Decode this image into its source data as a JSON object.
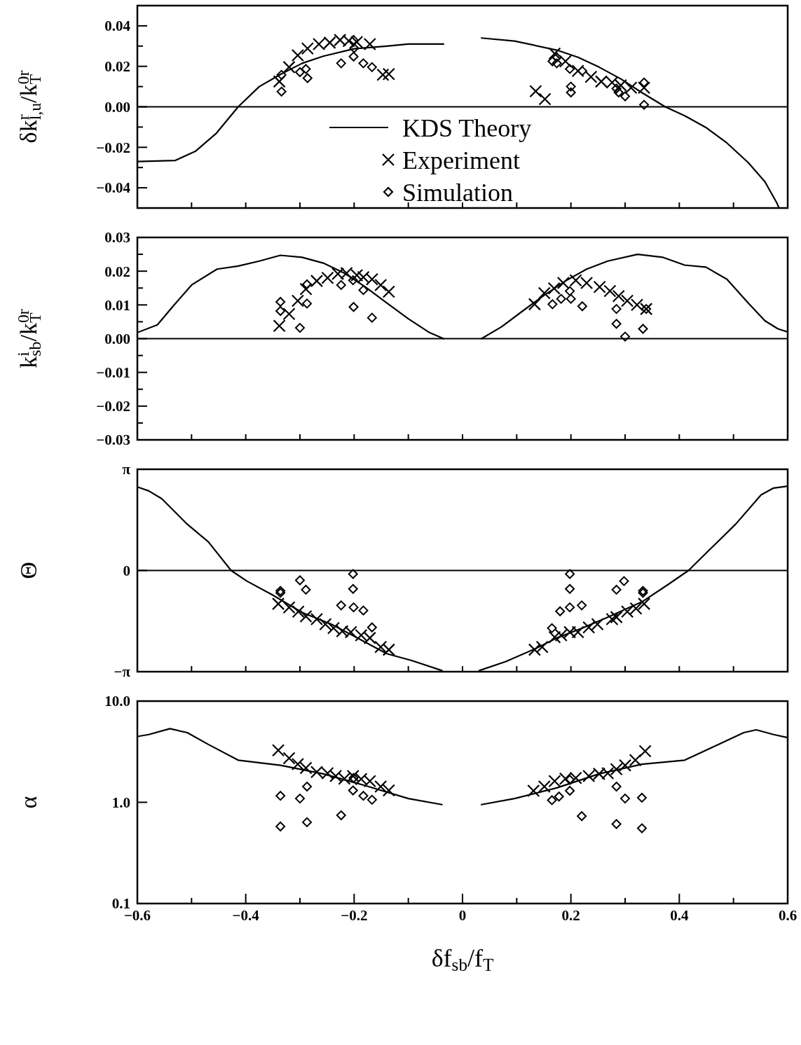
{
  "chart_data": [
    {
      "type": "scatter",
      "ylabel": "δk$^{r}$$_{l,u}$/k$^{0r}$$_{T}$",
      "xlim": [
        -0.6,
        0.6
      ],
      "ylim": [
        -0.05,
        0.05
      ],
      "tick_labels": "y",
      "legend": "bottom",
      "grid": false,
      "xticks": [
        {
          "value": -0.6,
          "label": null
        },
        {
          "value": -0.5,
          "label": null
        },
        {
          "value": -0.4,
          "label": null
        },
        {
          "value": -0.3,
          "label": null
        },
        {
          "value": -0.2,
          "label": null
        },
        {
          "value": -0.1,
          "label": null
        },
        {
          "value": 0,
          "label": null
        },
        {
          "value": 0.1,
          "label": null
        },
        {
          "value": 0.2,
          "label": null
        },
        {
          "value": 0.3,
          "label": null
        },
        {
          "value": 0.4,
          "label": null
        },
        {
          "value": 0.5,
          "label": null
        },
        {
          "value": 0.6,
          "label": null
        }
      ],
      "yticks": [
        {
          "value": -0.04,
          "label": "−0.04"
        },
        {
          "value": -0.03,
          "label": null
        },
        {
          "value": -0.02,
          "label": "−0.02"
        },
        {
          "value": -0.01,
          "label": null
        },
        {
          "value": 0,
          "label": "0.00"
        },
        {
          "value": 0.01,
          "label": null
        },
        {
          "value": 0.02,
          "label": "0.02"
        },
        {
          "value": 0.03,
          "label": null
        },
        {
          "value": 0.04,
          "label": "0.04"
        }
      ],
      "ref_lines": [
        {
          "axis": "y",
          "value": 0
        }
      ],
      "series": [
        {
          "name": "KDS Theory",
          "type": "line",
          "marker": "none",
          "color": "#000000",
          "x": [
            -0.6,
            -0.53,
            -0.493,
            -0.454,
            -0.414,
            -0.375,
            -0.336,
            -0.296,
            -0.257,
            -0.2,
            -0.14,
            -0.1,
            -0.035,
            null,
            0.035,
            0.096,
            0.174,
            0.213,
            0.252,
            0.292,
            0.331,
            0.374,
            0.41,
            0.449,
            0.488,
            0.527,
            0.558,
            0.58,
            0.584
          ],
          "values": [
            -0.027,
            -0.0265,
            -0.022,
            -0.013,
            0,
            0.01,
            0.016,
            0.0215,
            0.025,
            0.0287,
            0.03,
            0.031,
            0.031,
            null,
            0.034,
            0.0325,
            0.028,
            0.0245,
            0.0196,
            0.0138,
            0.007,
            0,
            -0.0044,
            -0.0102,
            -0.0179,
            -0.0275,
            -0.037,
            -0.0475,
            -0.05
          ]
        },
        {
          "name": "Experiment",
          "type": "scatter",
          "marker": "cross",
          "color": "#000000",
          "x": [
            -0.338,
            -0.32,
            -0.304,
            -0.286,
            -0.265,
            -0.245,
            -0.226,
            -0.21,
            -0.195,
            -0.171,
            -0.147,
            -0.136,
            0.135,
            0.152,
            0.17,
            0.19,
            0.213,
            0.237,
            0.256,
            0.276,
            0.292,
            0.311,
            0.335
          ],
          "values": [
            0.0125,
            0.0196,
            0.0254,
            0.0288,
            0.031,
            0.0317,
            0.033,
            0.0325,
            0.032,
            0.031,
            0.0158,
            0.0162,
            0.0077,
            0.0038,
            0.0263,
            0.0225,
            0.0177,
            0.0148,
            0.0125,
            0.012,
            0.0106,
            0.0094,
            0.0094
          ]
        },
        {
          "name": "Simulation",
          "type": "scatter",
          "marker": "diamond",
          "color": "#000000",
          "x": [
            -0.334,
            -0.334,
            -0.3,
            -0.289,
            -0.286,
            -0.224,
            -0.201,
            -0.201,
            -0.2,
            -0.183,
            -0.167,
            0.166,
            0.174,
            0.174,
            0.198,
            0.2,
            0.2,
            0.221,
            0.284,
            0.288,
            0.3,
            0.335,
            0.335
          ],
          "values": [
            0.0075,
            0.0158,
            0.0171,
            0.0187,
            0.0142,
            0.0215,
            0.0248,
            0.033,
            0.029,
            0.0215,
            0.0196,
            0.0225,
            0.0215,
            0.0244,
            0.0187,
            0.01,
            0.0071,
            0.0177,
            0.009,
            0.0071,
            0.0052,
            0.001,
            0.012
          ]
        }
      ]
    },
    {
      "type": "scatter",
      "ylabel": "k$^{i}$$_{sb}$/k$^{0r}$$_{T}$",
      "xlim": [
        -0.6,
        0.6
      ],
      "ylim": [
        -0.03,
        0.03
      ],
      "tick_labels": "y",
      "grid": false,
      "xticks": [
        {
          "value": -0.6,
          "label": null
        },
        {
          "value": -0.5,
          "label": null
        },
        {
          "value": -0.4,
          "label": null
        },
        {
          "value": -0.3,
          "label": null
        },
        {
          "value": -0.2,
          "label": null
        },
        {
          "value": -0.1,
          "label": null
        },
        {
          "value": 0,
          "label": null
        },
        {
          "value": 0.1,
          "label": null
        },
        {
          "value": 0.2,
          "label": null
        },
        {
          "value": 0.3,
          "label": null
        },
        {
          "value": 0.4,
          "label": null
        },
        {
          "value": 0.5,
          "label": null
        },
        {
          "value": 0.6,
          "label": null
        }
      ],
      "yticks": [
        {
          "value": -0.03,
          "label": "−0.03"
        },
        {
          "value": -0.025,
          "label": null
        },
        {
          "value": -0.02,
          "label": "−0.02"
        },
        {
          "value": -0.015,
          "label": null
        },
        {
          "value": -0.01,
          "label": "−0.01"
        },
        {
          "value": -0.005,
          "label": null
        },
        {
          "value": 0,
          "label": "0.00"
        },
        {
          "value": 0.005,
          "label": null
        },
        {
          "value": 0.01,
          "label": "0.01"
        },
        {
          "value": 0.015,
          "label": null
        },
        {
          "value": 0.02,
          "label": "0.02"
        },
        {
          "value": 0.025,
          "label": null
        },
        {
          "value": 0.03,
          "label": "0.03"
        }
      ],
      "ref_lines": [
        {
          "axis": "y",
          "value": 0
        }
      ],
      "series": [
        {
          "type": "line",
          "marker": "none",
          "color": "#000000",
          "x": [
            -0.6,
            -0.563,
            -0.532,
            -0.5,
            -0.453,
            -0.414,
            -0.375,
            -0.336,
            -0.296,
            -0.257,
            -0.218,
            -0.179,
            -0.14,
            -0.1,
            -0.061,
            -0.035,
            null,
            0.035,
            0.072,
            0.111,
            0.151,
            0.19,
            0.229,
            0.268,
            0.323,
            0.37,
            0.41,
            0.449,
            0.488,
            0.527,
            0.558,
            0.582,
            0.6
          ],
          "values": [
            0.0018,
            0.0041,
            0.01,
            0.0159,
            0.0206,
            0.0215,
            0.023,
            0.0247,
            0.0241,
            0.0224,
            0.0194,
            0.0153,
            0.0106,
            0.0059,
            0.0018,
            0,
            null,
            0,
            0.0035,
            0.0082,
            0.0129,
            0.0171,
            0.0206,
            0.023,
            0.025,
            0.0241,
            0.0218,
            0.0212,
            0.0176,
            0.0106,
            0.0053,
            0.0029,
            0.002
          ]
        },
        {
          "type": "scatter",
          "marker": "cross",
          "color": "#000000",
          "x": [
            -0.338,
            -0.32,
            -0.304,
            -0.289,
            -0.269,
            -0.249,
            -0.23,
            -0.214,
            -0.195,
            -0.183,
            -0.167,
            -0.151,
            -0.136,
            0.133,
            0.151,
            0.169,
            0.186,
            0.209,
            0.229,
            0.253,
            0.272,
            0.288,
            0.304,
            0.322,
            0.339
          ],
          "values": [
            0.0038,
            0.0073,
            0.0112,
            0.0147,
            0.0171,
            0.018,
            0.0192,
            0.0194,
            0.0188,
            0.0182,
            0.0176,
            0.0159,
            0.0139,
            0.0102,
            0.0135,
            0.0149,
            0.0165,
            0.0173,
            0.0165,
            0.0153,
            0.0141,
            0.0126,
            0.0112,
            0.01,
            0.0088
          ]
        },
        {
          "type": "scatter",
          "marker": "diamond",
          "color": "#000000",
          "x": [
            -0.336,
            -0.336,
            -0.3,
            -0.287,
            -0.287,
            -0.224,
            -0.202,
            -0.201,
            -0.183,
            -0.167,
            0.166,
            0.182,
            0.198,
            0.2,
            0.221,
            0.284,
            0.284,
            0.3,
            0.333,
            0.339
          ],
          "values": [
            0.0109,
            0.0082,
            0.0032,
            0.0104,
            0.0161,
            0.0159,
            0.0173,
            0.0094,
            0.0144,
            0.0062,
            0.0102,
            0.0118,
            0.0141,
            0.0118,
            0.0096,
            0.0088,
            0.0044,
            0.0006,
            0.0029,
            0.0088
          ]
        }
      ]
    },
    {
      "type": "scatter",
      "ylabel": "Θ",
      "xlim": [
        -0.6,
        0.6
      ],
      "ylim": [
        -3.1416,
        3.1416
      ],
      "tick_labels": "y",
      "grid": false,
      "xticks": [
        {
          "value": -0.6,
          "label": null
        },
        {
          "value": -0.5,
          "label": null
        },
        {
          "value": -0.4,
          "label": null
        },
        {
          "value": -0.3,
          "label": null
        },
        {
          "value": -0.2,
          "label": null
        },
        {
          "value": -0.1,
          "label": null
        },
        {
          "value": 0,
          "label": null
        },
        {
          "value": 0.1,
          "label": null
        },
        {
          "value": 0.2,
          "label": null
        },
        {
          "value": 0.3,
          "label": null
        },
        {
          "value": 0.4,
          "label": null
        },
        {
          "value": 0.5,
          "label": null
        },
        {
          "value": 0.6,
          "label": null
        }
      ],
      "yticks": [
        {
          "value": -3.1416,
          "label": "−π"
        },
        0,
        {
          "value": 3.1416,
          "label": "π"
        }
      ],
      "ref_lines": [
        {
          "axis": "y",
          "value": 0
        }
      ],
      "series": [
        {
          "type": "line",
          "marker": "none",
          "color": "#000000",
          "x": [
            -0.6,
            -0.579,
            -0.555,
            -0.508,
            -0.469,
            -0.427,
            -0.398,
            -0.351,
            -0.296,
            -0.242,
            -0.187,
            -0.14,
            -0.093,
            -0.038,
            null,
            0.031,
            0.08,
            0.135,
            0.174,
            0.221,
            0.268,
            0.331,
            0.378,
            0.417,
            0.456,
            0.504,
            0.551,
            0.574,
            0.6
          ],
          "values": [
            2.594,
            2.47,
            2.23,
            1.437,
            0.889,
            0,
            -0.329,
            -0.755,
            -1.303,
            -1.669,
            -2.156,
            -2.582,
            -2.8,
            -3.106,
            null,
            -3.106,
            -2.826,
            -2.424,
            -2.095,
            -1.79,
            -1.449,
            -0.974,
            -0.451,
            0,
            0.646,
            1.437,
            2.35,
            2.558,
            2.619
          ]
        },
        {
          "type": "scatter",
          "marker": "cross",
          "color": "#000000",
          "x": [
            -0.34,
            -0.32,
            -0.303,
            -0.289,
            -0.269,
            -0.253,
            -0.238,
            -0.222,
            -0.206,
            -0.187,
            -0.171,
            -0.151,
            -0.136,
            0.133,
            0.147,
            0.17,
            0.182,
            0.198,
            0.213,
            0.233,
            0.249,
            0.276,
            0.284,
            0.304,
            0.32,
            0.335
          ],
          "values": [
            -1.035,
            -1.145,
            -1.279,
            -1.425,
            -1.51,
            -1.669,
            -1.79,
            -1.888,
            -1.912,
            -2.01,
            -2.095,
            -2.375,
            -2.46,
            -2.46,
            -2.375,
            -2.07,
            -2.01,
            -1.912,
            -1.912,
            -1.766,
            -1.669,
            -1.51,
            -1.449,
            -1.279,
            -1.18,
            -1.035
          ]
        },
        {
          "type": "scatter",
          "marker": "diamond",
          "color": "#000000",
          "x": [
            -0.336,
            -0.336,
            -0.3,
            -0.289,
            -0.224,
            -0.202,
            -0.202,
            -0.201,
            -0.183,
            -0.167,
            0.165,
            0.18,
            0.198,
            0.198,
            0.198,
            0.22,
            0.284,
            0.298,
            0.333,
            0.333
          ],
          "values": [
            -0.633,
            -0.694,
            -0.305,
            -0.597,
            -1.084,
            -0.11,
            -0.572,
            -1.145,
            -1.242,
            -1.766,
            -1.79,
            -1.267,
            -0.11,
            -0.572,
            -1.145,
            -1.084,
            -0.597,
            -0.329,
            -0.633,
            -0.694
          ]
        }
      ]
    },
    {
      "type": "scatter",
      "ylabel": "α",
      "xlabel": "δf$_{sb}$/f$_{T}$",
      "xlim": [
        -0.6,
        0.6
      ],
      "ylim": [
        0.1,
        10
      ],
      "log": "y",
      "grid": false,
      "xticks": [
        {
          "value": -0.6,
          "label": "−0.6"
        },
        {
          "value": -0.5,
          "label": null
        },
        {
          "value": -0.4,
          "label": "−0.4"
        },
        {
          "value": -0.3,
          "label": null
        },
        {
          "value": -0.2,
          "label": "−0.2"
        },
        {
          "value": -0.1,
          "label": null
        },
        0,
        {
          "value": 0.1,
          "label": null
        },
        0.2,
        {
          "value": 0.3,
          "label": null
        },
        0.4,
        {
          "value": 0.5,
          "label": null
        },
        0.6
      ],
      "yticks": [
        0.1,
        {
          "value": 1,
          "label": "1.0"
        },
        {
          "value": 10,
          "label": "10.0"
        }
      ],
      "series": [
        {
          "type": "line",
          "marker": "none",
          "color": "#000000",
          "x": [
            -0.6,
            -0.579,
            -0.54,
            -0.508,
            -0.469,
            -0.414,
            -0.336,
            -0.257,
            -0.179,
            -0.1,
            -0.038,
            null,
            0.035,
            0.096,
            0.174,
            0.252,
            0.331,
            0.41,
            0.472,
            0.519,
            0.542,
            0.574,
            0.6
          ],
          "values": [
            4.47,
            4.67,
            5.34,
            4.88,
            3.73,
            2.61,
            2.32,
            1.91,
            1.46,
            1.09,
            0.95,
            null,
            0.95,
            1.09,
            1.39,
            1.91,
            2.38,
            2.61,
            3.73,
            4.88,
            5.2,
            4.67,
            4.35
          ]
        },
        {
          "type": "scatter",
          "marker": "cross",
          "color": "#000000",
          "x": [
            -0.34,
            -0.32,
            -0.304,
            -0.289,
            -0.269,
            -0.249,
            -0.234,
            -0.218,
            -0.202,
            -0.187,
            -0.171,
            -0.151,
            -0.136,
            0.131,
            0.151,
            0.17,
            0.19,
            0.209,
            0.233,
            0.252,
            0.268,
            0.284,
            0.3,
            0.319,
            0.337
          ],
          "values": [
            3.26,
            2.73,
            2.38,
            2.18,
            1.99,
            1.94,
            1.82,
            1.71,
            1.82,
            1.7,
            1.62,
            1.43,
            1.31,
            1.3,
            1.43,
            1.62,
            1.71,
            1.74,
            1.82,
            1.91,
            1.94,
            2.12,
            2.32,
            2.61,
            3.2
          ]
        },
        {
          "type": "scatter",
          "marker": "diamond",
          "color": "#000000",
          "x": [
            -0.336,
            -0.336,
            -0.3,
            -0.287,
            -0.287,
            -0.224,
            -0.202,
            -0.201,
            -0.183,
            -0.167,
            0.165,
            0.178,
            0.198,
            0.198,
            0.22,
            0.284,
            0.284,
            0.3,
            0.331,
            0.331
          ],
          "values": [
            1.16,
            0.577,
            1.09,
            1.43,
            0.636,
            0.744,
            1.31,
            1.74,
            1.16,
            1.06,
            1.05,
            1.14,
            1.3,
            1.67,
            0.73,
            1.43,
            0.61,
            1.09,
            1.11,
            0.554
          ]
        }
      ]
    }
  ]
}
